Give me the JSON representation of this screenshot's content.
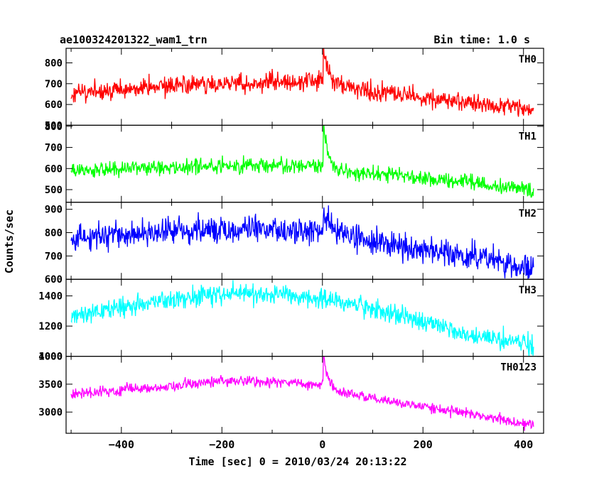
{
  "chart_data": {
    "type": "line",
    "title": "ae100324201322_wam1_trn",
    "bin_time_label": "Bin time: 1.0 s",
    "xlabel": "Time [sec] 0 = 2010/03/24 20:13:22",
    "ylabel": "Counts/sec",
    "xlim": [
      -510,
      440
    ],
    "x_ticks": [
      -400,
      -200,
      0,
      200,
      400
    ],
    "x_tick_labels": [
      "−400",
      "−200",
      "0",
      "200",
      "400"
    ],
    "grid": false,
    "bin_time_s": 1.0,
    "time_range": [
      -500,
      420
    ],
    "panels": [
      {
        "name": "TH0",
        "color": "#ff0000",
        "ylim": [
          500,
          870
        ],
        "y_ticks": [
          500,
          600,
          700,
          800
        ],
        "y_tick_labels": [
          "500",
          "600",
          "700",
          "800"
        ],
        "trend": [
          [
            -500,
            655
          ],
          [
            -300,
            690
          ],
          [
            -100,
            705
          ],
          [
            -10,
            710
          ],
          [
            0,
            720
          ],
          [
            10,
            700
          ],
          [
            100,
            660
          ],
          [
            200,
            630
          ],
          [
            300,
            605
          ],
          [
            420,
            570
          ]
        ],
        "noise": 32,
        "burst": {
          "t": 3,
          "peak": 880
        }
      },
      {
        "name": "TH1",
        "color": "#00ff00",
        "ylim": [
          440,
          805
        ],
        "y_ticks": [
          500,
          600,
          700,
          800
        ],
        "y_tick_labels": [
          "500",
          "600",
          "700",
          "800"
        ],
        "trend": [
          [
            -500,
            590
          ],
          [
            -300,
            610
          ],
          [
            -100,
            612
          ],
          [
            -10,
            610
          ],
          [
            0,
            620
          ],
          [
            10,
            595
          ],
          [
            100,
            575
          ],
          [
            200,
            555
          ],
          [
            300,
            530
          ],
          [
            420,
            500
          ]
        ],
        "noise": 25,
        "burst": {
          "t": 3,
          "peak": 800
        }
      },
      {
        "name": "TH2",
        "color": "#0000ff",
        "ylim": [
          600,
          930
        ],
        "y_ticks": [
          600,
          700,
          800,
          900
        ],
        "y_tick_labels": [
          "600",
          "700",
          "800",
          "900"
        ],
        "trend": [
          [
            -500,
            780
          ],
          [
            -300,
            805
          ],
          [
            -200,
            815
          ],
          [
            -100,
            815
          ],
          [
            0,
            805
          ],
          [
            100,
            765
          ],
          [
            200,
            730
          ],
          [
            300,
            700
          ],
          [
            420,
            650
          ]
        ],
        "noise": 40,
        "burst": {
          "t": 3,
          "peak": 900
        }
      },
      {
        "name": "TH3",
        "color": "#00ffff",
        "ylim": [
          1000,
          1510
        ],
        "y_ticks": [
          1000,
          1200,
          1400
        ],
        "y_tick_labels": [
          "1000",
          "1200",
          "1400"
        ],
        "trend": [
          [
            -500,
            1270
          ],
          [
            -350,
            1350
          ],
          [
            -200,
            1420
          ],
          [
            -100,
            1410
          ],
          [
            0,
            1380
          ],
          [
            100,
            1310
          ],
          [
            200,
            1230
          ],
          [
            300,
            1140
          ],
          [
            420,
            1070
          ]
        ],
        "noise": 45,
        "burst": null
      },
      {
        "name": "TH0123",
        "color": "#ff00ff",
        "ylim": [
          2620,
          4000
        ],
        "y_ticks": [
          3000,
          3500,
          4000
        ],
        "y_tick_labels": [
          "3000",
          "3500",
          "4000"
        ],
        "trend": [
          [
            -500,
            3320
          ],
          [
            -300,
            3470
          ],
          [
            -200,
            3560
          ],
          [
            -100,
            3545
          ],
          [
            -10,
            3480
          ],
          [
            0,
            3500
          ],
          [
            10,
            3400
          ],
          [
            100,
            3250
          ],
          [
            200,
            3100
          ],
          [
            300,
            2960
          ],
          [
            420,
            2760
          ]
        ],
        "noise": 65,
        "burst": {
          "t": 3,
          "peak": 3980
        }
      }
    ]
  }
}
